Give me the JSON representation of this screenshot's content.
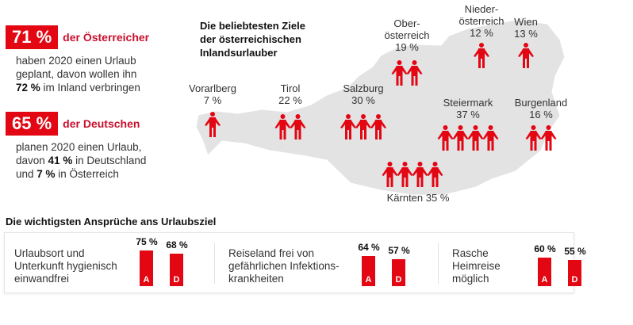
{
  "stats": [
    {
      "badge": "71 %",
      "who": "der Österreicher",
      "lines": [
        "haben 2020 einen Urlaub",
        "geplant, davon wollen ihn"
      ],
      "last_bold": "72 %",
      "last_rest": " im Inland verbringen"
    },
    {
      "badge": "65 %",
      "who": "der Deutschen",
      "line1": "planen 2020 einen Urlaub,",
      "line2_pre": "davon ",
      "line2_bold": "41 %",
      "line2_post": " in Deutschland",
      "line3_pre": "und ",
      "line3_bold": "7 %",
      "line3_post": " in Österreich"
    }
  ],
  "map": {
    "title": [
      "Die beliebtesten Ziele",
      "der österreichischen",
      "Inlandsurlauber"
    ],
    "regions": [
      {
        "name": "Vorarlberg",
        "value": "7 %",
        "icons": 1
      },
      {
        "name": "Tirol",
        "value": "22 %",
        "icons": 2
      },
      {
        "name": "Salzburg",
        "value": "30 %",
        "icons": 3
      },
      {
        "name": "Ober-\nösterreich",
        "value": "19 %",
        "icons": 2
      },
      {
        "name": "Nieder-\nösterreich",
        "value": "12 %",
        "icons": 1
      },
      {
        "name": "Wien",
        "value": "13 %",
        "icons": 1
      },
      {
        "name": "Steiermark",
        "value": "37 %",
        "icons": 4
      },
      {
        "name": "Burgenland",
        "value": "16 %",
        "icons": 2
      },
      {
        "name": "Kärnten",
        "value": "35 %",
        "icons": 4
      }
    ],
    "map_color": "#e3e3e3",
    "icon_color": "#e30613"
  },
  "chart_data": {
    "type": "bar",
    "title": "Die wichtigsten Ansprüche ans Urlaubsziel",
    "categories": [
      "Urlaubsort und\nUnterkunft hygienisch\neinwandfrei",
      "Reiseland frei von\ngefährlichen Infektions-\nkrankheiten",
      "Rasche\nHeimreise\nmöglich"
    ],
    "series": [
      {
        "name": "A",
        "values": [
          75,
          64,
          60
        ],
        "labels": [
          "75 %",
          "64 %",
          "60 %"
        ]
      },
      {
        "name": "D",
        "values": [
          68,
          57,
          55
        ],
        "labels": [
          "68 %",
          "57 %",
          "55 %"
        ]
      }
    ],
    "color": "#e30613"
  }
}
